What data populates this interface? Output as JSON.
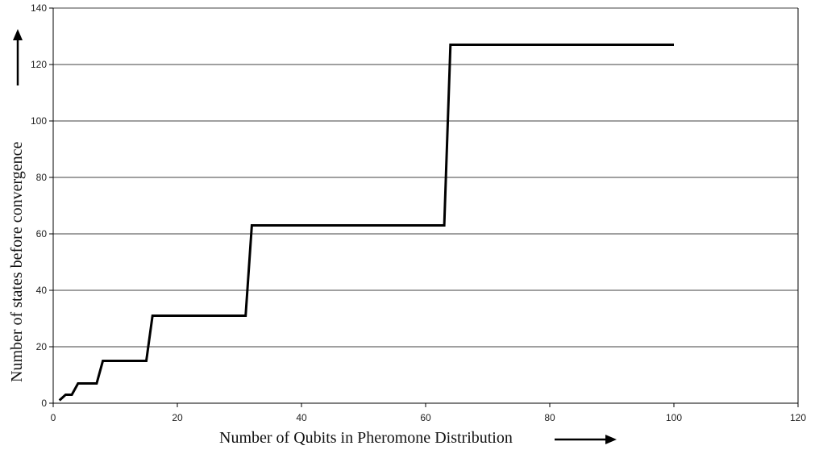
{
  "chart_data": {
    "type": "line",
    "xlabel": "Number of Qubits in Pheromone Distribution",
    "ylabel": "Number of states before convergence",
    "xlim": [
      0,
      120
    ],
    "ylim": [
      0,
      140
    ],
    "x_ticks": [
      0,
      20,
      40,
      60,
      80,
      100,
      120
    ],
    "y_ticks": [
      0,
      20,
      40,
      60,
      80,
      100,
      120,
      140
    ],
    "x_tick_labels": [
      "0",
      "20",
      "40",
      "60",
      "80",
      "100",
      "120"
    ],
    "y_tick_labels": [
      "0",
      "20",
      "40",
      "60",
      "80",
      "100",
      "120",
      "140"
    ],
    "grid": "horizontal",
    "series": [
      {
        "color": "#000000",
        "x": [
          1,
          2,
          3,
          4,
          7,
          8,
          15,
          16,
          31,
          32,
          63,
          64,
          100
        ],
        "y": [
          1,
          3,
          3,
          7,
          7,
          15,
          15,
          31,
          31,
          63,
          63,
          127,
          127
        ]
      }
    ]
  }
}
